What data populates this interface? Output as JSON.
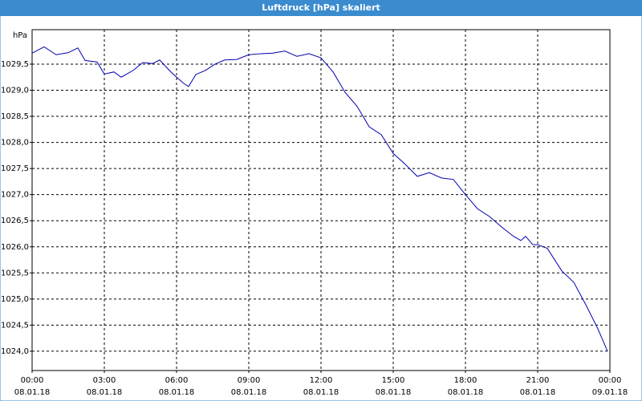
{
  "chart_data": {
    "type": "line",
    "title": "Luftdruck [hPa] skaliert",
    "y_label": "hPa",
    "x": [
      0,
      0.5,
      1.0,
      1.5,
      1.9,
      2.2,
      2.7,
      3.0,
      3.4,
      3.7,
      4.2,
      4.6,
      5.0,
      5.3,
      5.7,
      6.0,
      6.3,
      6.5,
      6.8,
      7.2,
      7.6,
      8.0,
      8.5,
      9.0,
      9.5,
      10.0,
      10.5,
      11.0,
      11.5,
      12.0,
      12.5,
      13.0,
      13.5,
      14.0,
      14.5,
      15.0,
      15.5,
      16.0,
      16.5,
      17.0,
      17.5,
      18.0,
      18.5,
      19.0,
      19.5,
      20.0,
      20.3,
      20.5,
      20.8,
      21.0,
      21.4,
      22.0,
      22.5,
      23.0,
      23.5,
      23.9
    ],
    "series": [
      {
        "name": "Luftdruck",
        "color": "#0000b0",
        "values": [
          1029.71,
          1029.83,
          1029.68,
          1029.72,
          1029.81,
          1029.57,
          1029.54,
          1029.31,
          1029.35,
          1029.25,
          1029.38,
          1029.53,
          1029.51,
          1029.58,
          1029.38,
          1029.25,
          1029.13,
          1029.07,
          1029.3,
          1029.38,
          1029.5,
          1029.58,
          1029.59,
          1029.68,
          1029.7,
          1029.71,
          1029.75,
          1029.65,
          1029.7,
          1029.62,
          1029.35,
          1028.96,
          1028.69,
          1028.3,
          1028.15,
          1027.79,
          1027.58,
          1027.35,
          1027.42,
          1027.32,
          1027.29,
          1027.0,
          1026.73,
          1026.58,
          1026.38,
          1026.2,
          1026.12,
          1026.2,
          1026.04,
          1026.04,
          1025.97,
          1025.54,
          1025.32,
          1024.89,
          1024.43,
          1024.0
        ]
      }
    ],
    "xlim": [
      0,
      24
    ],
    "xticks": [
      {
        "value": 0,
        "label": "00:00",
        "date": "08.01.18"
      },
      {
        "value": 3,
        "label": "03:00",
        "date": "08.01.18"
      },
      {
        "value": 6,
        "label": "06:00",
        "date": "08.01.18"
      },
      {
        "value": 9,
        "label": "09:00",
        "date": "08.01.18"
      },
      {
        "value": 12,
        "label": "12:00",
        "date": "08.01.18"
      },
      {
        "value": 15,
        "label": "15:00",
        "date": "08.01.18"
      },
      {
        "value": 18,
        "label": "18:00",
        "date": "08.01.18"
      },
      {
        "value": 21,
        "label": "21:00",
        "date": "08.01.18"
      },
      {
        "value": 24,
        "label": "00:00",
        "date": "09.01.18"
      }
    ],
    "ylim": [
      1023.63,
      1030.16
    ],
    "yticks": [
      {
        "value": 1024.0,
        "label": "1024,0"
      },
      {
        "value": 1024.5,
        "label": "1024,5"
      },
      {
        "value": 1025.0,
        "label": "1025,0"
      },
      {
        "value": 1025.5,
        "label": "1025,5"
      },
      {
        "value": 1026.0,
        "label": "1026,0"
      },
      {
        "value": 1026.5,
        "label": "1026,5"
      },
      {
        "value": 1027.0,
        "label": "1027,0"
      },
      {
        "value": 1027.5,
        "label": "1027,5"
      },
      {
        "value": 1028.0,
        "label": "1028,0"
      },
      {
        "value": 1028.5,
        "label": "1028,5"
      },
      {
        "value": 1029.0,
        "label": "1029,0"
      },
      {
        "value": 1029.5,
        "label": "1029,5"
      }
    ],
    "grid": true
  }
}
